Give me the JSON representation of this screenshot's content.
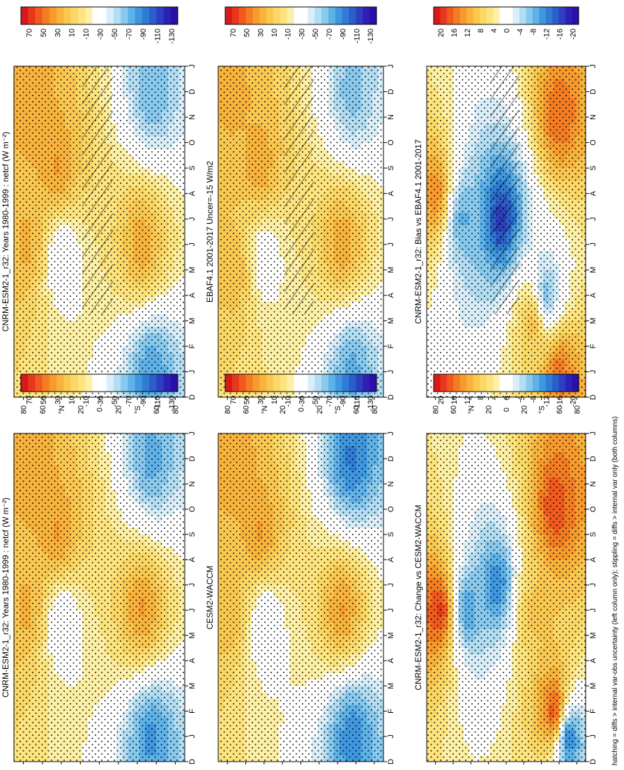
{
  "figure": {
    "footnote": "hatching = diffs > internal var-obs uncertainty (left column only); stippling = diffs > internal var only (both columns)"
  },
  "chart_data": [
    {
      "type": "heatmap",
      "title": "CNRM-ESM2-1_r32: Years 1980-1999 : netcf (W m⁻²)",
      "months": [
        "D",
        "J",
        "F",
        "M",
        "A",
        "M",
        "J",
        "J",
        "A",
        "S",
        "O",
        "N",
        "D",
        "J"
      ],
      "lat_ticks": [
        "80",
        "60",
        "°N",
        "20",
        "0",
        "20",
        "°S",
        "60",
        "80"
      ],
      "colorbar": {
        "labels": [
          "70",
          "50",
          "30",
          "10",
          "-10",
          "-30",
          "-50",
          "-70",
          "-90",
          "-110",
          "-130"
        ],
        "colors": [
          "#d7191c",
          "#e8381c",
          "#f05a1e",
          "#f47d23",
          "#f79b2e",
          "#f8b33c",
          "#fac851",
          "#fbd866",
          "#fde47f",
          "#fdf0a6",
          "#ffffff",
          "#ffffff",
          "#d9eef8",
          "#b3ddf3",
          "#88c9ee",
          "#5fb2e8",
          "#3f98df",
          "#2f7bd5",
          "#2a5ec9",
          "#2d3fbf",
          "#2d20b4",
          "#2a0fa8"
        ]
      },
      "hatching": true,
      "stippling": true,
      "field": [
        {
          "month": 1,
          "lat": 75,
          "value": 35
        },
        {
          "month": 7,
          "lat": 75,
          "value": 30
        },
        {
          "month": 4,
          "lat": 45,
          "value": 40
        },
        {
          "month": 7.5,
          "lat": 40,
          "value": -45
        },
        {
          "month": 1,
          "lat": -55,
          "value": -75
        },
        {
          "month": 12,
          "lat": -55,
          "value": -85
        },
        {
          "month": 7,
          "lat": -45,
          "value": 35
        }
      ]
    },
    {
      "type": "heatmap",
      "title": "CNRM-ESM2-1_r32: Years 1980-1999 : netcf (W m⁻²)",
      "months": [
        "D",
        "J",
        "F",
        "M",
        "A",
        "M",
        "J",
        "J",
        "A",
        "S",
        "O",
        "N",
        "D",
        "J"
      ],
      "lat_ticks": [
        "80",
        "60",
        "°N",
        "20",
        "0",
        "20",
        "°S",
        "60",
        "80"
      ],
      "colorbar": {
        "labels": [
          "70",
          "50",
          "30",
          "10",
          "-10",
          "-30",
          "-50",
          "-70",
          "-90",
          "-110",
          "-130"
        ],
        "colors": [
          "#d7191c",
          "#e8381c",
          "#f05a1e",
          "#f47d23",
          "#f79b2e",
          "#f8b33c",
          "#fac851",
          "#fbd866",
          "#fde47f",
          "#fdf0a6",
          "#ffffff",
          "#ffffff",
          "#d9eef8",
          "#b3ddf3",
          "#88c9ee",
          "#5fb2e8",
          "#3f98df",
          "#2f7bd5",
          "#2a5ec9",
          "#2d3fbf",
          "#2d20b4",
          "#2a0fa8"
        ]
      },
      "hatching": false,
      "stippling": true,
      "field": [
        {
          "month": 1,
          "lat": 75,
          "value": 35
        },
        {
          "month": 7,
          "lat": 75,
          "value": 30
        },
        {
          "month": 4,
          "lat": 45,
          "value": 40
        },
        {
          "month": 7.5,
          "lat": 40,
          "value": -45
        },
        {
          "month": 1,
          "lat": -55,
          "value": -80
        },
        {
          "month": 12,
          "lat": -55,
          "value": -90
        },
        {
          "month": 7,
          "lat": -45,
          "value": 40
        }
      ]
    },
    {
      "type": "heatmap",
      "title": "EBAF4.1 2001-2017 Uncer=-15 W/m2",
      "months": [
        "D",
        "J",
        "F",
        "M",
        "A",
        "M",
        "J",
        "J",
        "A",
        "S",
        "O",
        "N",
        "D",
        "J"
      ],
      "lat_ticks": [
        "80",
        "60",
        "°N",
        "20",
        "0",
        "20",
        "°S",
        "60",
        "80"
      ],
      "colorbar": {
        "labels": [
          "70",
          "50",
          "30",
          "10",
          "-10",
          "-30",
          "-50",
          "-70",
          "-90",
          "-110",
          "-130"
        ],
        "colors": [
          "#d7191c",
          "#e8381c",
          "#f05a1e",
          "#f47d23",
          "#f79b2e",
          "#f8b33c",
          "#fac851",
          "#fbd866",
          "#fde47f",
          "#fdf0a6",
          "#ffffff",
          "#ffffff",
          "#d9eef8",
          "#b3ddf3",
          "#88c9ee",
          "#5fb2e8",
          "#3f98df",
          "#2f7bd5",
          "#2a5ec9",
          "#2d3fbf",
          "#2d20b4",
          "#2a0fa8"
        ]
      },
      "hatching": true,
      "stippling": true,
      "field": [
        {
          "month": 1,
          "lat": 75,
          "value": 30
        },
        {
          "month": 8,
          "lat": 70,
          "value": 25
        },
        {
          "month": 4,
          "lat": 45,
          "value": 35
        },
        {
          "month": 7.5,
          "lat": 40,
          "value": -40
        },
        {
          "month": 1,
          "lat": -55,
          "value": -70
        },
        {
          "month": 12,
          "lat": -55,
          "value": -80
        },
        {
          "month": 7,
          "lat": -45,
          "value": 35
        }
      ]
    },
    {
      "type": "heatmap",
      "title": "CESM2-WACCM",
      "months": [
        "D",
        "J",
        "F",
        "M",
        "A",
        "M",
        "J",
        "J",
        "A",
        "S",
        "O",
        "N",
        "D",
        "J"
      ],
      "lat_ticks": [
        "80",
        "60",
        "°N",
        "20",
        "0",
        "20",
        "°S",
        "60",
        "80"
      ],
      "colorbar": {
        "labels": [
          "70",
          "50",
          "30",
          "10",
          "-10",
          "-30",
          "-50",
          "-70",
          "-90",
          "-110",
          "-130"
        ],
        "colors": [
          "#d7191c",
          "#e8381c",
          "#f05a1e",
          "#f47d23",
          "#f79b2e",
          "#f8b33c",
          "#fac851",
          "#fbd866",
          "#fde47f",
          "#fdf0a6",
          "#ffffff",
          "#ffffff",
          "#d9eef8",
          "#b3ddf3",
          "#88c9ee",
          "#5fb2e8",
          "#3f98df",
          "#2f7bd5",
          "#2a5ec9",
          "#2d3fbf",
          "#2d20b4",
          "#2a0fa8"
        ]
      },
      "hatching": false,
      "stippling": true,
      "field": [
        {
          "month": 1,
          "lat": 75,
          "value": 35
        },
        {
          "month": 7,
          "lat": 75,
          "value": 25
        },
        {
          "month": 4,
          "lat": 45,
          "value": 40
        },
        {
          "month": 7.5,
          "lat": 40,
          "value": -45
        },
        {
          "month": 1,
          "lat": -55,
          "value": -100
        },
        {
          "month": 12,
          "lat": -55,
          "value": -95
        },
        {
          "month": 7,
          "lat": -45,
          "value": 40
        }
      ]
    },
    {
      "type": "heatmap",
      "title": "CNRM-ESM2-1_r32: Bias vs EBAF4.1 2001-2017",
      "months": [
        "D",
        "J",
        "F",
        "M",
        "A",
        "M",
        "J",
        "J",
        "A",
        "S",
        "O",
        "N",
        "D",
        "J"
      ],
      "lat_ticks": [
        "80",
        "60",
        "°N",
        "20",
        "0",
        "20",
        "°S",
        "60",
        "80"
      ],
      "colorbar": {
        "labels": [
          "20",
          "16",
          "12",
          "8",
          "4",
          "0",
          "-4",
          "-8",
          "-12",
          "-16",
          "-20"
        ],
        "colors": [
          "#d7191c",
          "#e8381c",
          "#f05a1e",
          "#f47d23",
          "#f79b2e",
          "#f8b33c",
          "#fac851",
          "#fbd866",
          "#fde47f",
          "#fdf0a6",
          "#ffffff",
          "#ffffff",
          "#d9eef8",
          "#b3ddf3",
          "#88c9ee",
          "#5fb2e8",
          "#3f98df",
          "#2f7bd5",
          "#2a5ec9",
          "#2d3fbf",
          "#2d20b4",
          "#2a0fa8"
        ]
      },
      "hatching": true,
      "stippling": true,
      "field": [
        {
          "month": 5,
          "lat": 80,
          "value": 16
        },
        {
          "month": 6,
          "lat": 50,
          "value": -10
        },
        {
          "month": 6,
          "lat": 5,
          "value": -20
        },
        {
          "month": 2,
          "lat": -60,
          "value": 18
        },
        {
          "month": 12,
          "lat": -60,
          "value": 18
        },
        {
          "month": 10,
          "lat": -30,
          "value": 12
        },
        {
          "month": 9,
          "lat": -45,
          "value": -10
        }
      ]
    },
    {
      "type": "heatmap",
      "title": "CNRM-ESM2-1_r32: Change vs CESM2-WACCM",
      "months": [
        "D",
        "J",
        "F",
        "M",
        "A",
        "M",
        "J",
        "J",
        "A",
        "S",
        "O",
        "N",
        "D",
        "J"
      ],
      "lat_ticks": [
        "80",
        "60",
        "°N",
        "20",
        "0",
        "20",
        "°S",
        "60",
        "80"
      ],
      "colorbar": {
        "labels": [
          "20",
          "16",
          "12",
          "8",
          "4",
          "0",
          "-4",
          "-8",
          "-12",
          "-16",
          "-20"
        ],
        "colors": [
          "#d7191c",
          "#e8381c",
          "#f05a1e",
          "#f47d23",
          "#f79b2e",
          "#f8b33c",
          "#fac851",
          "#fbd866",
          "#fde47f",
          "#fdf0a6",
          "#ffffff",
          "#ffffff",
          "#d9eef8",
          "#b3ddf3",
          "#88c9ee",
          "#5fb2e8",
          "#3f98df",
          "#2f7bd5",
          "#2a5ec9",
          "#2d3fbf",
          "#2d20b4",
          "#2a0fa8"
        ]
      },
      "hatching": false,
      "stippling": true,
      "field": [
        {
          "month": 7,
          "lat": 75,
          "value": 22
        },
        {
          "month": 7,
          "lat": 45,
          "value": -12
        },
        {
          "month": 6,
          "lat": 10,
          "value": -14
        },
        {
          "month": 3,
          "lat": -55,
          "value": 20
        },
        {
          "month": 11,
          "lat": -55,
          "value": 22
        },
        {
          "month": 7,
          "lat": -30,
          "value": 10
        },
        {
          "month": 12,
          "lat": -70,
          "value": -16
        }
      ]
    }
  ]
}
